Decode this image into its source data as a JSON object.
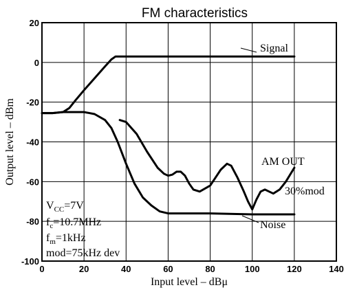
{
  "chart_data": {
    "type": "line",
    "title": "FM characteristics",
    "xlabel": "Input level – dBμ",
    "ylabel": "Output level – dBm",
    "xlim": [
      0,
      140
    ],
    "ylim": [
      -100,
      20
    ],
    "xticks": [
      0,
      20,
      40,
      60,
      80,
      100,
      120,
      140
    ],
    "yticks": [
      20,
      0,
      -20,
      -40,
      -60,
      -80,
      -100
    ],
    "xtick_labels": [
      "0",
      "20",
      "40",
      "60",
      "80",
      "100",
      "120",
      "140"
    ],
    "ytick_labels": [
      "20",
      "0",
      "-20",
      "-40",
      "-60",
      "-80",
      "-100"
    ],
    "grid": true,
    "series": [
      {
        "name": "Signal",
        "x": [
          0,
          5,
          10,
          13,
          16,
          20,
          25,
          30,
          33,
          35,
          38,
          40,
          50,
          60,
          80,
          100,
          120
        ],
        "y": [
          -25.5,
          -25.5,
          -25,
          -23,
          -19,
          -14,
          -8,
          -2,
          1.5,
          3,
          3,
          3,
          3,
          3,
          3,
          3,
          3
        ]
      },
      {
        "name": "Noise",
        "x": [
          0,
          5,
          10,
          15,
          20,
          25,
          30,
          33,
          36,
          40,
          44,
          48,
          52,
          56,
          60,
          70,
          80,
          100,
          120
        ],
        "y": [
          -25.5,
          -25.5,
          -25,
          -25,
          -25,
          -26,
          -29,
          -33,
          -40,
          -51,
          -61,
          -68,
          -72,
          -75,
          -76,
          -76,
          -76,
          -76.5,
          -76.5
        ]
      },
      {
        "name": "AM OUT 30%mod",
        "x": [
          37,
          40,
          45,
          50,
          55,
          58,
          60,
          62,
          64,
          66,
          68,
          70,
          72,
          75,
          80,
          85,
          88,
          90,
          93,
          96,
          98,
          100,
          102,
          104,
          106,
          108,
          110,
          113,
          116,
          120
        ],
        "y": [
          -29,
          -30,
          -36,
          -45,
          -53,
          -56,
          -57,
          -56.5,
          -55,
          -55,
          -57,
          -61,
          -64,
          -65,
          -62,
          -54,
          -51,
          -52,
          -58,
          -65,
          -70,
          -74,
          -69,
          -65,
          -64,
          -65,
          -66,
          -64,
          -60,
          -53
        ]
      }
    ],
    "annotations": {
      "signal_label": "Signal",
      "noise_label": "Noise",
      "am_label": "AM OUT",
      "am_mod_label": "30%mod",
      "vcc_main": "V",
      "vcc_sub": "CC",
      "vcc_value": "=7V",
      "fc_main": "f",
      "fc_sub": "c",
      "fc_value": "=10.7MHz",
      "fm_main": "f",
      "fm_sub": "m",
      "fm_value": "=1kHz",
      "mod_text": "mod=75kHz dev"
    }
  }
}
